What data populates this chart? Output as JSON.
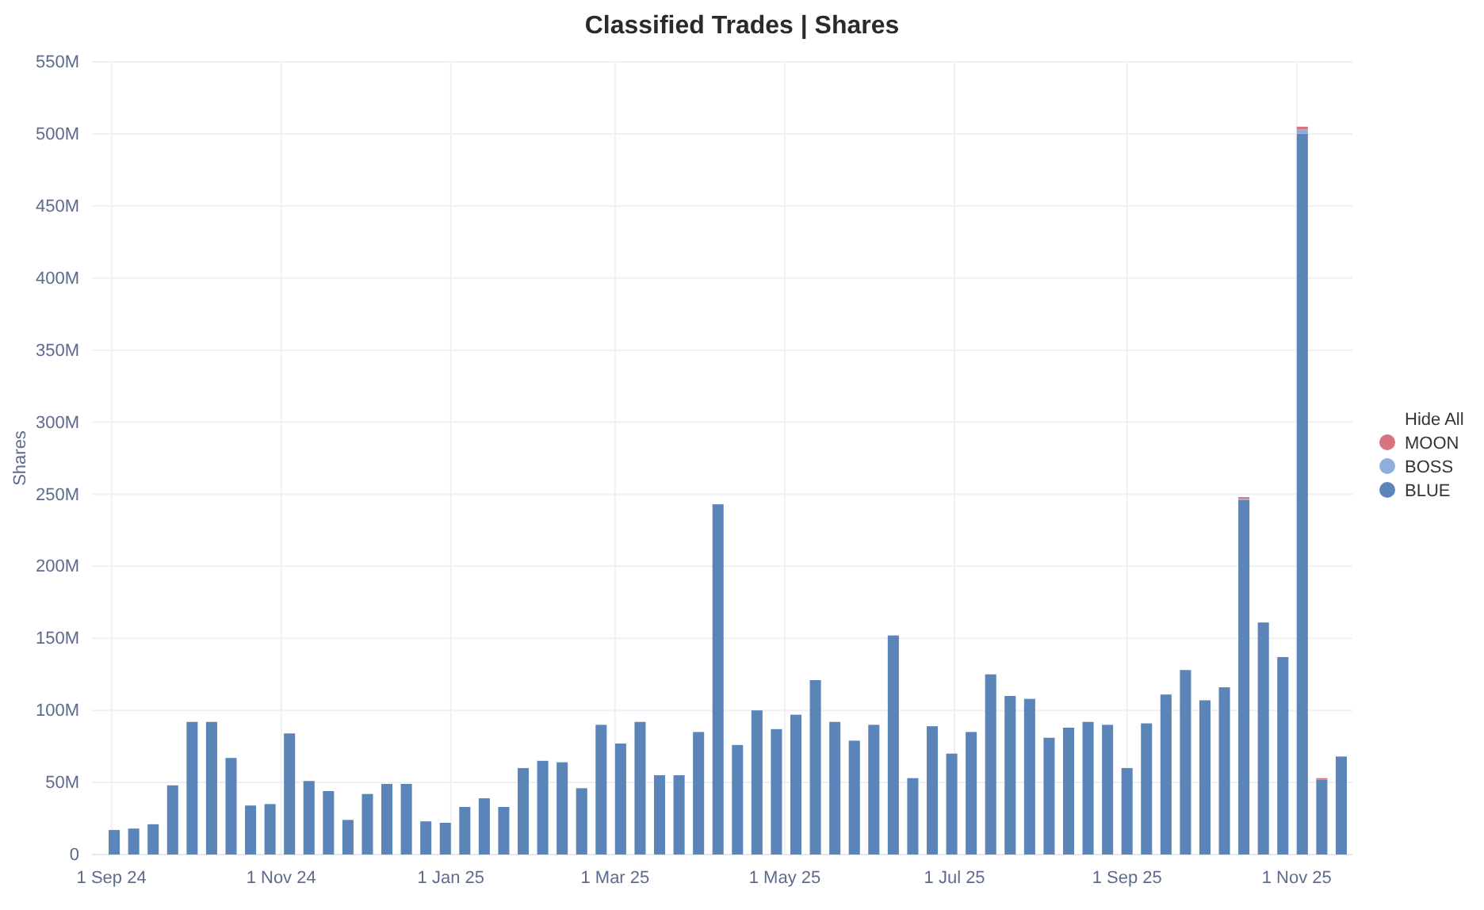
{
  "chart_data": {
    "type": "bar",
    "stacked": true,
    "title": "Classified Trades | Shares",
    "ylabel": "Shares",
    "legend_title": "Hide All",
    "legend": "right",
    "grid": true,
    "x": [
      "2024-09-02",
      "2024-09-09",
      "2024-09-16",
      "2024-09-23",
      "2024-09-30",
      "2024-10-07",
      "2024-10-14",
      "2024-10-21",
      "2024-10-28",
      "2024-11-04",
      "2024-11-11",
      "2024-11-18",
      "2024-11-25",
      "2024-12-02",
      "2024-12-09",
      "2024-12-16",
      "2024-12-23",
      "2024-12-30",
      "2025-01-06",
      "2025-01-13",
      "2025-01-20",
      "2025-01-27",
      "2025-02-03",
      "2025-02-10",
      "2025-02-17",
      "2025-02-24",
      "2025-03-03",
      "2025-03-10",
      "2025-03-17",
      "2025-03-24",
      "2025-03-31",
      "2025-04-07",
      "2025-04-14",
      "2025-04-21",
      "2025-04-28",
      "2025-05-05",
      "2025-05-12",
      "2025-05-19",
      "2025-05-26",
      "2025-06-02",
      "2025-06-09",
      "2025-06-16",
      "2025-06-23",
      "2025-06-30",
      "2025-07-07",
      "2025-07-14",
      "2025-07-21",
      "2025-07-28",
      "2025-08-04",
      "2025-08-11",
      "2025-08-18",
      "2025-08-25",
      "2025-09-01",
      "2025-09-08",
      "2025-09-15",
      "2025-09-22",
      "2025-09-29",
      "2025-10-06",
      "2025-10-13",
      "2025-10-20",
      "2025-10-27",
      "2025-11-03",
      "2025-11-10",
      "2025-11-17"
    ],
    "series": [
      {
        "name": "BLUE",
        "color": "#5b84b8",
        "values": [
          17,
          18,
          21,
          48,
          92,
          92,
          67,
          34,
          35,
          84,
          51,
          44,
          24,
          42,
          49,
          49,
          23,
          22,
          33,
          39,
          33,
          60,
          65,
          64,
          46,
          90,
          77,
          92,
          55,
          55,
          85,
          243,
          76,
          100,
          87,
          97,
          121,
          92,
          79,
          90,
          152,
          53,
          89,
          70,
          85,
          125,
          110,
          108,
          81,
          88,
          92,
          90,
          60,
          91,
          111,
          128,
          107,
          116,
          246,
          161,
          137,
          500,
          52,
          68
        ]
      },
      {
        "name": "BOSS",
        "color": "#8eafdc",
        "values": [
          0,
          0,
          0,
          0,
          0,
          0,
          0,
          0,
          0,
          0,
          0,
          0,
          0,
          0,
          0,
          0,
          0,
          0,
          0,
          0,
          0,
          0,
          0,
          0,
          0,
          0,
          0,
          0,
          0,
          0,
          0,
          0,
          0,
          0,
          0,
          0,
          0,
          0,
          0,
          0,
          0,
          0,
          0,
          0,
          0,
          0,
          0,
          0,
          0,
          0,
          0,
          0,
          0,
          0,
          0,
          0,
          0,
          0,
          1,
          0,
          0,
          3,
          0,
          0
        ]
      },
      {
        "name": "MOON",
        "color": "#d9737f",
        "values": [
          0,
          0,
          0,
          0,
          0,
          0,
          0,
          0,
          0,
          0,
          0,
          0,
          0,
          0,
          0,
          0,
          0,
          0,
          0,
          0,
          0,
          0,
          0,
          0,
          0,
          0,
          0,
          0,
          0,
          0,
          0,
          0,
          0,
          0,
          0,
          0,
          0,
          0,
          0,
          0,
          0,
          0,
          0,
          0,
          0,
          0,
          0,
          0,
          0,
          0,
          0,
          0,
          0,
          0,
          0,
          0,
          0,
          0,
          1,
          0,
          0,
          2,
          1,
          0
        ]
      }
    ],
    "xlim": [
      "2024-08-25",
      "2025-11-21"
    ],
    "xticks": [
      {
        "value": "2024-09-01",
        "label": "1 Sep 24"
      },
      {
        "value": "2024-11-01",
        "label": "1 Nov 24"
      },
      {
        "value": "2025-01-01",
        "label": "1 Jan 25"
      },
      {
        "value": "2025-03-01",
        "label": "1 Mar 25"
      },
      {
        "value": "2025-05-01",
        "label": "1 May 25"
      },
      {
        "value": "2025-07-01",
        "label": "1 Jul 25"
      },
      {
        "value": "2025-09-01",
        "label": "1 Sep 25"
      },
      {
        "value": "2025-11-01",
        "label": "1 Nov 25"
      }
    ],
    "ylim": [
      0,
      550
    ],
    "yticks": [
      0,
      {
        "value": 50,
        "label": "50M"
      },
      {
        "value": 100,
        "label": "100M"
      },
      {
        "value": 150,
        "label": "150M"
      },
      {
        "value": 200,
        "label": "200M"
      },
      {
        "value": 250,
        "label": "250M"
      },
      {
        "value": 300,
        "label": "300M"
      },
      {
        "value": 350,
        "label": "350M"
      },
      {
        "value": 400,
        "label": "400M"
      },
      {
        "value": 450,
        "label": "450M"
      },
      {
        "value": 500,
        "label": "500M"
      },
      {
        "value": 550,
        "label": "550M"
      }
    ]
  }
}
